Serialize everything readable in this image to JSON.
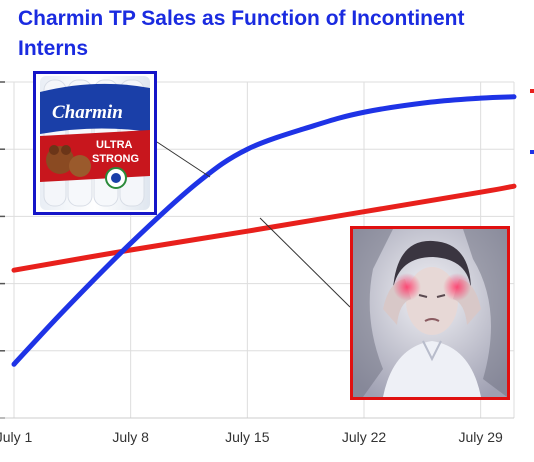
{
  "title": "Charmin TP Sales as Function of Incontinent Interns",
  "colors": {
    "title": "#1a2be0",
    "red_series": "#e8201c",
    "blue_series": "#1e33e6",
    "grid": "#dddddd",
    "connector": "#333333"
  },
  "chart_data": {
    "type": "line",
    "title": "Charmin TP Sales as Function of Incontinent Interns",
    "xlabel": "",
    "ylabel": "",
    "x_tick_labels": [
      "July 1",
      "July 8",
      "July 15",
      "July 22",
      "July 29"
    ],
    "x_tick_days": [
      1,
      8,
      15,
      22,
      29
    ],
    "xlim": [
      1,
      31
    ],
    "ylim": [
      0,
      5
    ],
    "grid": true,
    "legend": "right",
    "series": [
      {
        "color": "#e8201c",
        "x": [
          1,
          8,
          15,
          22,
          29,
          31
        ],
        "y": [
          2.2,
          2.5,
          2.78,
          3.07,
          3.36,
          3.45
        ]
      },
      {
        "color": "#1e33e6",
        "x": [
          1,
          4,
          8,
          12,
          15,
          19,
          22,
          26,
          29,
          31
        ],
        "y": [
          0.8,
          1.6,
          2.6,
          3.5,
          4.0,
          4.35,
          4.55,
          4.7,
          4.76,
          4.78
        ]
      }
    ]
  },
  "images": {
    "tp_package": {
      "logo": "Charmin",
      "tag_line1": "ULTRA",
      "tag_line2": "STRONG"
    },
    "headache_photo": {}
  }
}
